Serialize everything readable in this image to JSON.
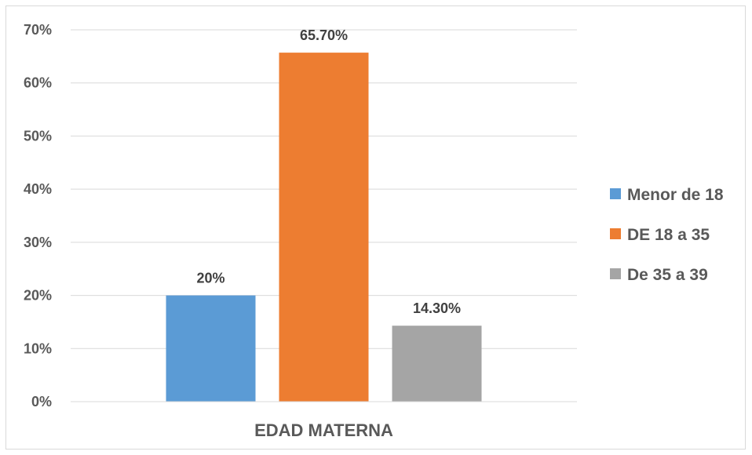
{
  "chart_data": {
    "type": "bar",
    "title": "",
    "xlabel": "",
    "ylabel": "",
    "categories": [
      "EDAD MATERNA"
    ],
    "series": [
      {
        "name": "Menor de 18",
        "values": [
          20.0
        ],
        "label": "20%",
        "color": "#5b9bd5"
      },
      {
        "name": "DE 18 a 35",
        "values": [
          65.7
        ],
        "label": "65.70%",
        "color": "#ed7d31"
      },
      {
        "name": "De 35 a 39",
        "values": [
          14.3
        ],
        "label": "14.30%",
        "color": "#a5a5a5"
      }
    ],
    "ylim": [
      0,
      70
    ],
    "yticks": [
      0,
      10,
      20,
      30,
      40,
      50,
      60,
      70
    ],
    "ytick_labels": [
      "0%",
      "10%",
      "20%",
      "30%",
      "40%",
      "50%",
      "60%",
      "70%"
    ],
    "grid": true,
    "legend_position": "right"
  }
}
